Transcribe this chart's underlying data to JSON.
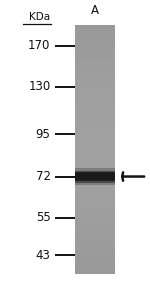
{
  "fig_width": 1.5,
  "fig_height": 2.85,
  "dpi": 100,
  "bg_color": "#ffffff",
  "lane_label": "A",
  "kda_label": "KDa",
  "markers": [
    170,
    130,
    95,
    72,
    55,
    43
  ],
  "band_kda": 72,
  "gel_color": "#999999",
  "band_color": "#1a1a1a",
  "marker_line_color": "#111111",
  "arrow_color": "#111111",
  "label_fontsize": 8.5,
  "kda_fontsize": 7.5,
  "lane_fontsize": 8.5
}
